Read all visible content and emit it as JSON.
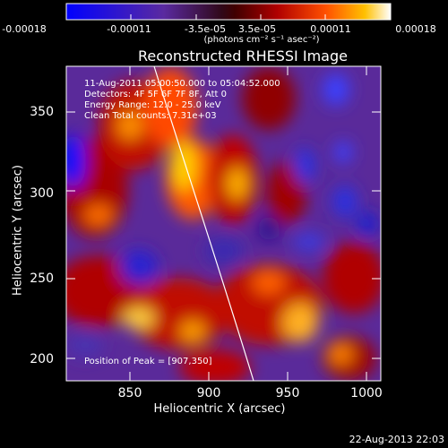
{
  "colorbar": {
    "ticks": [
      "-0.00018",
      "-0.00011",
      "-3.5e-05",
      "3.5e-05",
      "0.00011",
      "0.00018"
    ],
    "units": "(photons cm⁻² s⁻¹ asec⁻²)"
  },
  "plot": {
    "title": "Reconstructed RHESSI Image",
    "info": {
      "time": "11-Aug-2011 05:00:50.000 to 05:04:52.000",
      "detectors": "Detectors: 4F 5F 6F 7F 8F, Att 0",
      "energy": "Energy Range: 12.0 - 25.0 keV",
      "clean": "Clean    Total counts: 7.31e+03"
    },
    "peak": "Position of Peak = [907,350]",
    "x_ticks": [
      "850",
      "900",
      "950",
      "1000"
    ],
    "y_ticks": [
      "350",
      "300",
      "250",
      "200"
    ],
    "xlabel": "Heliocentric X (arcsec)",
    "ylabel": "Heliocentric Y (arcsec)"
  },
  "timestamp": "22-Aug-2013 22:03"
}
